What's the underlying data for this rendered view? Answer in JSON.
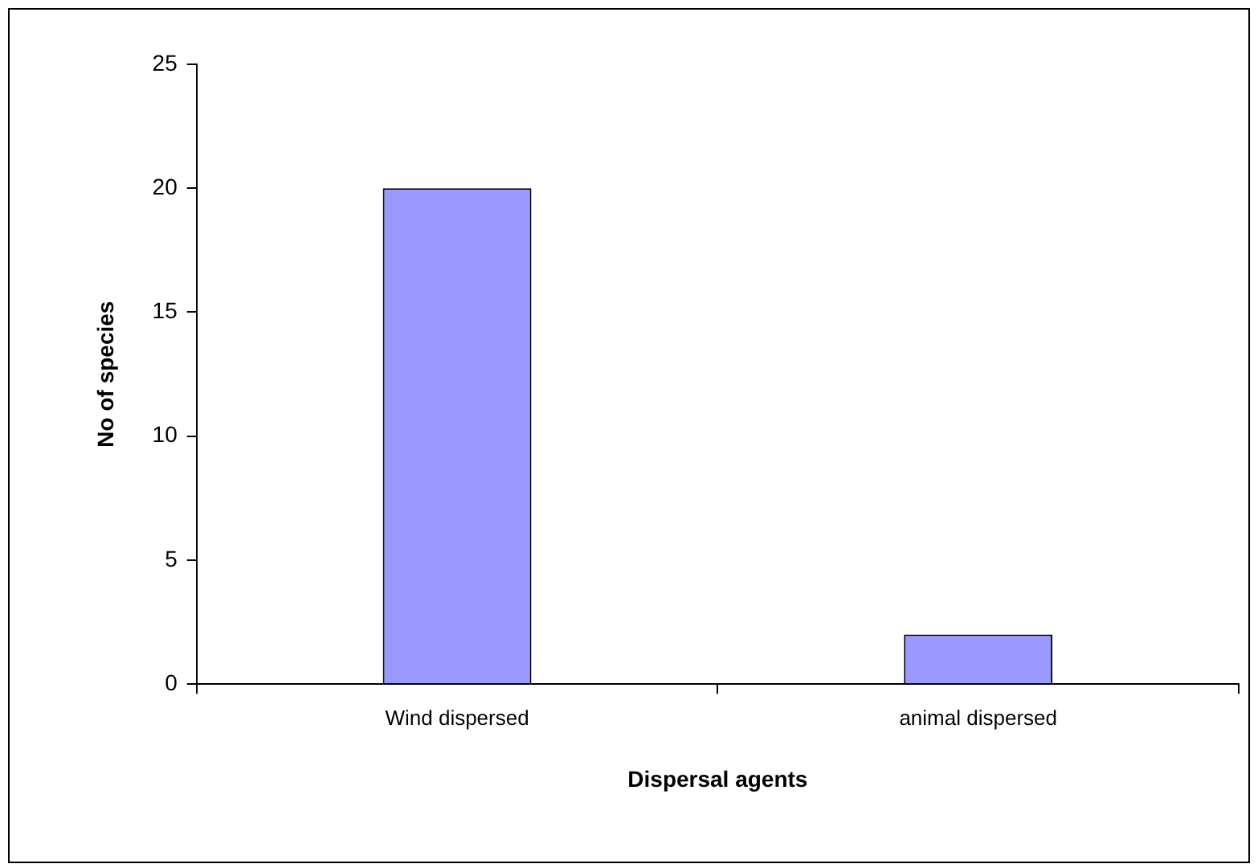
{
  "chart_data": {
    "type": "bar",
    "xlabel": "Dispersal agents",
    "ylabel": "No of species",
    "categories": [
      "Wind dispersed",
      "animal dispersed"
    ],
    "values": [
      20,
      2
    ],
    "color": "#9999ff",
    "ylim": [
      0,
      25
    ],
    "yticks": [
      0,
      5,
      10,
      15,
      20,
      25
    ],
    "grid": false,
    "legend": false
  }
}
